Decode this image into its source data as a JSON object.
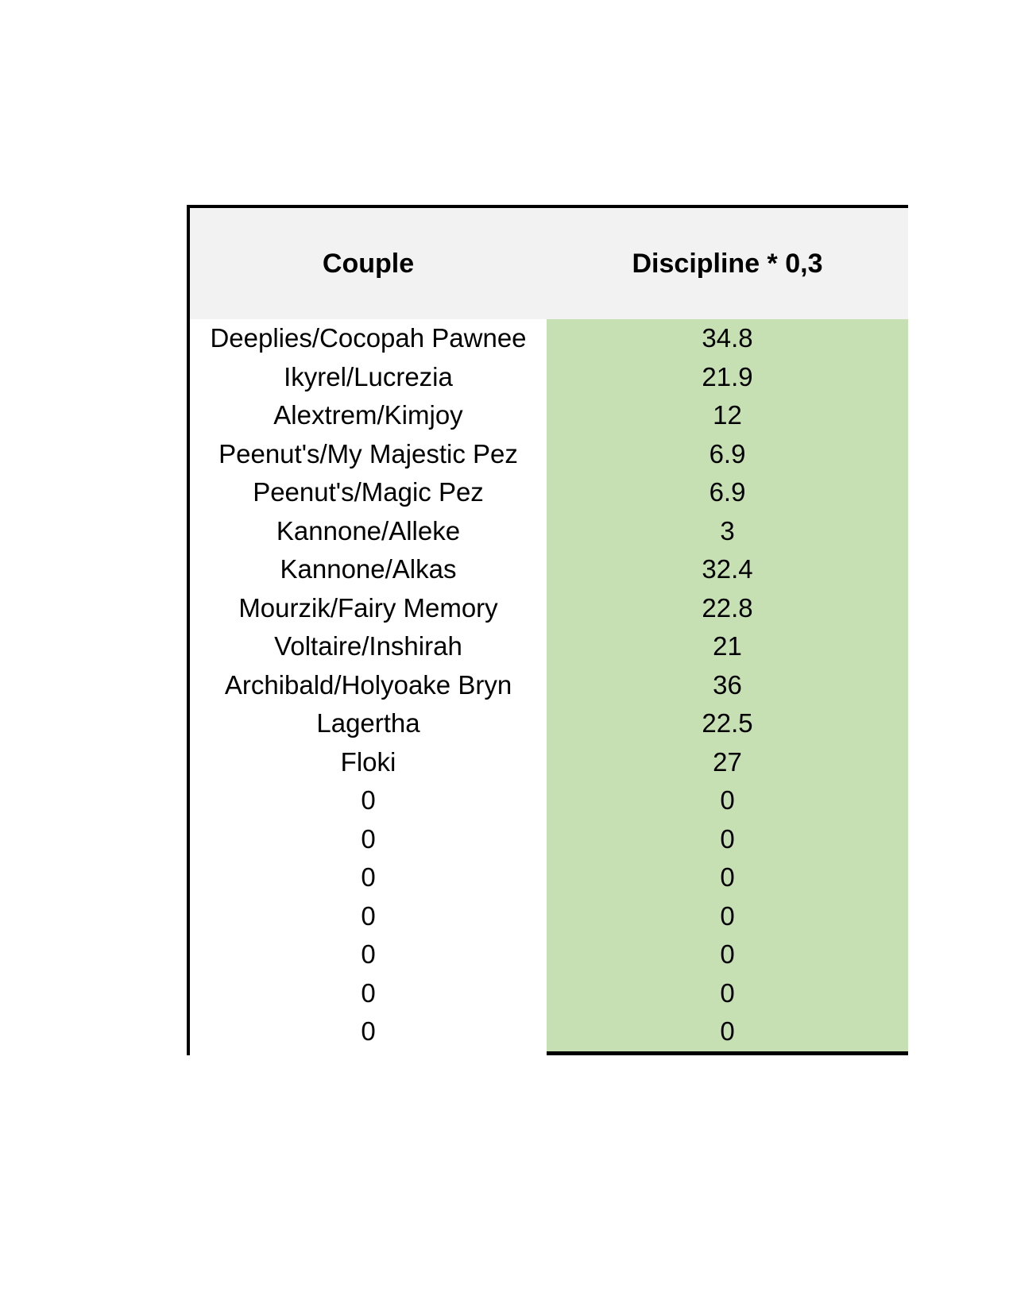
{
  "table": {
    "header": {
      "couple_label": "Couple",
      "discipline_label": "Discipline * 0,3"
    },
    "rows": [
      {
        "couple": "Deeplies/Cocopah Pawnee",
        "value": "34.8"
      },
      {
        "couple": "Ikyrel/Lucrezia",
        "value": "21.9"
      },
      {
        "couple": "Alextrem/Kimjoy",
        "value": "12"
      },
      {
        "couple": "Peenut's/My Majestic Pez",
        "value": "6.9"
      },
      {
        "couple": "Peenut's/Magic Pez",
        "value": "6.9"
      },
      {
        "couple": "Kannone/Alleke",
        "value": "3"
      },
      {
        "couple": "Kannone/Alkas",
        "value": "32.4"
      },
      {
        "couple": "Mourzik/Fairy Memory",
        "value": "22.8"
      },
      {
        "couple": "Voltaire/Inshirah",
        "value": "21"
      },
      {
        "couple": "Archibald/Holyoake Bryn",
        "value": "36"
      },
      {
        "couple": "Lagertha",
        "value": "22.5"
      },
      {
        "couple": "Floki",
        "value": "27"
      },
      {
        "couple": "0",
        "value": "0"
      },
      {
        "couple": "0",
        "value": "0"
      },
      {
        "couple": "0",
        "value": "0"
      },
      {
        "couple": "0",
        "value": "0"
      },
      {
        "couple": "0",
        "value": "0"
      },
      {
        "couple": "0",
        "value": "0"
      },
      {
        "couple": "0",
        "value": "0"
      }
    ],
    "colors": {
      "header_bg": "#f2f2f2",
      "value_column_bg": "#c6e0b4",
      "border": "#000000",
      "text": "#000000",
      "page_bg": "#ffffff"
    }
  }
}
